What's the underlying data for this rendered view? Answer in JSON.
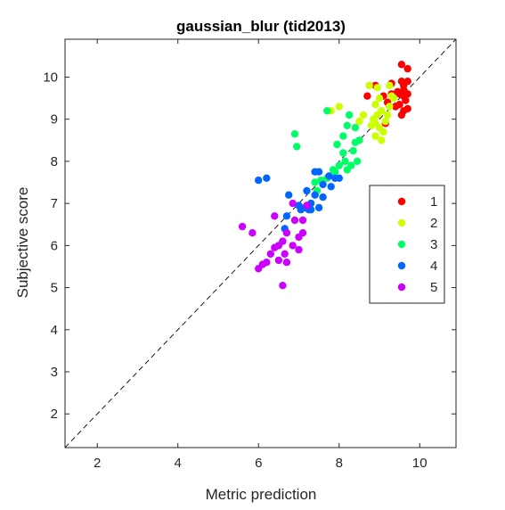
{
  "chart_data": {
    "type": "scatter",
    "title": "gaussian_blur (tid2013)",
    "xlabel": "Metric prediction",
    "ylabel": "Subjective score",
    "xlim": [
      1.2,
      10.9
    ],
    "ylim": [
      1.2,
      10.9
    ],
    "xticks": [
      2,
      4,
      6,
      8,
      10
    ],
    "yticks": [
      2,
      3,
      4,
      5,
      6,
      7,
      8,
      9,
      10
    ],
    "grid": false,
    "legend_position": "right",
    "reference_line": "dashed identity line y = x",
    "series": [
      {
        "name": "1",
        "color": "#ff0000",
        "points": [
          [
            9.55,
            10.3
          ],
          [
            9.6,
            9.55
          ],
          [
            9.7,
            9.6
          ],
          [
            9.6,
            9.8
          ],
          [
            9.7,
            9.9
          ],
          [
            9.45,
            9.65
          ],
          [
            9.5,
            9.35
          ],
          [
            9.6,
            9.2
          ],
          [
            9.7,
            9.25
          ],
          [
            9.3,
            9.85
          ],
          [
            9.55,
            9.9
          ],
          [
            9.7,
            10.2
          ],
          [
            9.6,
            9.7
          ],
          [
            9.5,
            9.6
          ],
          [
            9.4,
            9.3
          ],
          [
            9.3,
            9.6
          ],
          [
            9.2,
            9.4
          ],
          [
            9.1,
            9.55
          ],
          [
            8.9,
            9.8
          ],
          [
            8.7,
            9.55
          ],
          [
            9.65,
            9.45
          ],
          [
            9.55,
            9.1
          ],
          [
            9.15,
            8.9
          ]
        ]
      },
      {
        "name": "2",
        "color": "#ccff00",
        "points": [
          [
            8.75,
            9.8
          ],
          [
            8.95,
            9.75
          ],
          [
            9.0,
            9.5
          ],
          [
            8.9,
            9.35
          ],
          [
            9.05,
            9.2
          ],
          [
            8.95,
            9.1
          ],
          [
            8.85,
            9.0
          ],
          [
            8.9,
            8.9
          ],
          [
            9.0,
            8.8
          ],
          [
            9.1,
            8.7
          ],
          [
            9.05,
            8.5
          ],
          [
            8.9,
            8.6
          ],
          [
            8.8,
            8.85
          ],
          [
            9.25,
            9.3
          ],
          [
            9.35,
            9.5
          ],
          [
            9.2,
            9.1
          ],
          [
            9.15,
            8.95
          ],
          [
            7.8,
            9.2
          ],
          [
            8.0,
            9.3
          ],
          [
            8.6,
            9.1
          ],
          [
            8.5,
            8.95
          ],
          [
            9.25,
            9.8
          ],
          [
            9.3,
            9.55
          ]
        ]
      },
      {
        "name": "3",
        "color": "#00ff66",
        "points": [
          [
            6.9,
            8.65
          ],
          [
            6.95,
            8.35
          ],
          [
            7.7,
            9.2
          ],
          [
            8.25,
            9.1
          ],
          [
            7.95,
            8.4
          ],
          [
            8.4,
            8.45
          ],
          [
            8.35,
            8.25
          ],
          [
            8.1,
            8.2
          ],
          [
            8.15,
            8.0
          ],
          [
            8.2,
            7.8
          ],
          [
            8.0,
            7.9
          ],
          [
            7.9,
            7.75
          ],
          [
            7.7,
            7.6
          ],
          [
            7.55,
            7.55
          ],
          [
            7.4,
            7.5
          ],
          [
            7.45,
            7.3
          ],
          [
            8.45,
            8.0
          ],
          [
            8.2,
            8.85
          ],
          [
            8.4,
            8.8
          ],
          [
            8.5,
            8.5
          ],
          [
            8.1,
            8.6
          ],
          [
            8.3,
            7.9
          ],
          [
            7.85,
            7.8
          ]
        ]
      },
      {
        "name": "4",
        "color": "#0066ff",
        "points": [
          [
            6.0,
            7.55
          ],
          [
            6.2,
            7.6
          ],
          [
            7.4,
            7.75
          ],
          [
            7.5,
            7.75
          ],
          [
            7.75,
            7.65
          ],
          [
            7.9,
            7.6
          ],
          [
            8.0,
            7.6
          ],
          [
            7.6,
            7.45
          ],
          [
            7.2,
            7.3
          ],
          [
            7.3,
            7.0
          ],
          [
            7.05,
            6.85
          ],
          [
            7.15,
            6.9
          ],
          [
            7.25,
            6.85
          ],
          [
            7.0,
            6.95
          ],
          [
            6.75,
            7.2
          ],
          [
            6.7,
            6.7
          ],
          [
            6.65,
            6.4
          ],
          [
            7.4,
            7.2
          ],
          [
            7.3,
            6.85
          ],
          [
            7.5,
            6.9
          ],
          [
            7.8,
            7.4
          ],
          [
            7.6,
            7.15
          ]
        ]
      },
      {
        "name": "5",
        "color": "#cc00ff",
        "points": [
          [
            5.6,
            6.45
          ],
          [
            5.85,
            6.3
          ],
          [
            6.4,
            6.7
          ],
          [
            6.85,
            7.0
          ],
          [
            6.9,
            6.6
          ],
          [
            7.0,
            6.2
          ],
          [
            7.1,
            6.3
          ],
          [
            7.1,
            6.6
          ],
          [
            7.2,
            6.95
          ],
          [
            6.7,
            6.3
          ],
          [
            6.6,
            6.1
          ],
          [
            6.5,
            6.0
          ],
          [
            6.4,
            5.95
          ],
          [
            6.3,
            5.8
          ],
          [
            6.2,
            5.6
          ],
          [
            6.1,
            5.55
          ],
          [
            6.0,
            5.45
          ],
          [
            6.65,
            5.8
          ],
          [
            6.7,
            5.6
          ],
          [
            6.6,
            5.05
          ],
          [
            7.0,
            5.9
          ],
          [
            6.5,
            5.65
          ],
          [
            6.85,
            6.0
          ]
        ]
      }
    ]
  }
}
